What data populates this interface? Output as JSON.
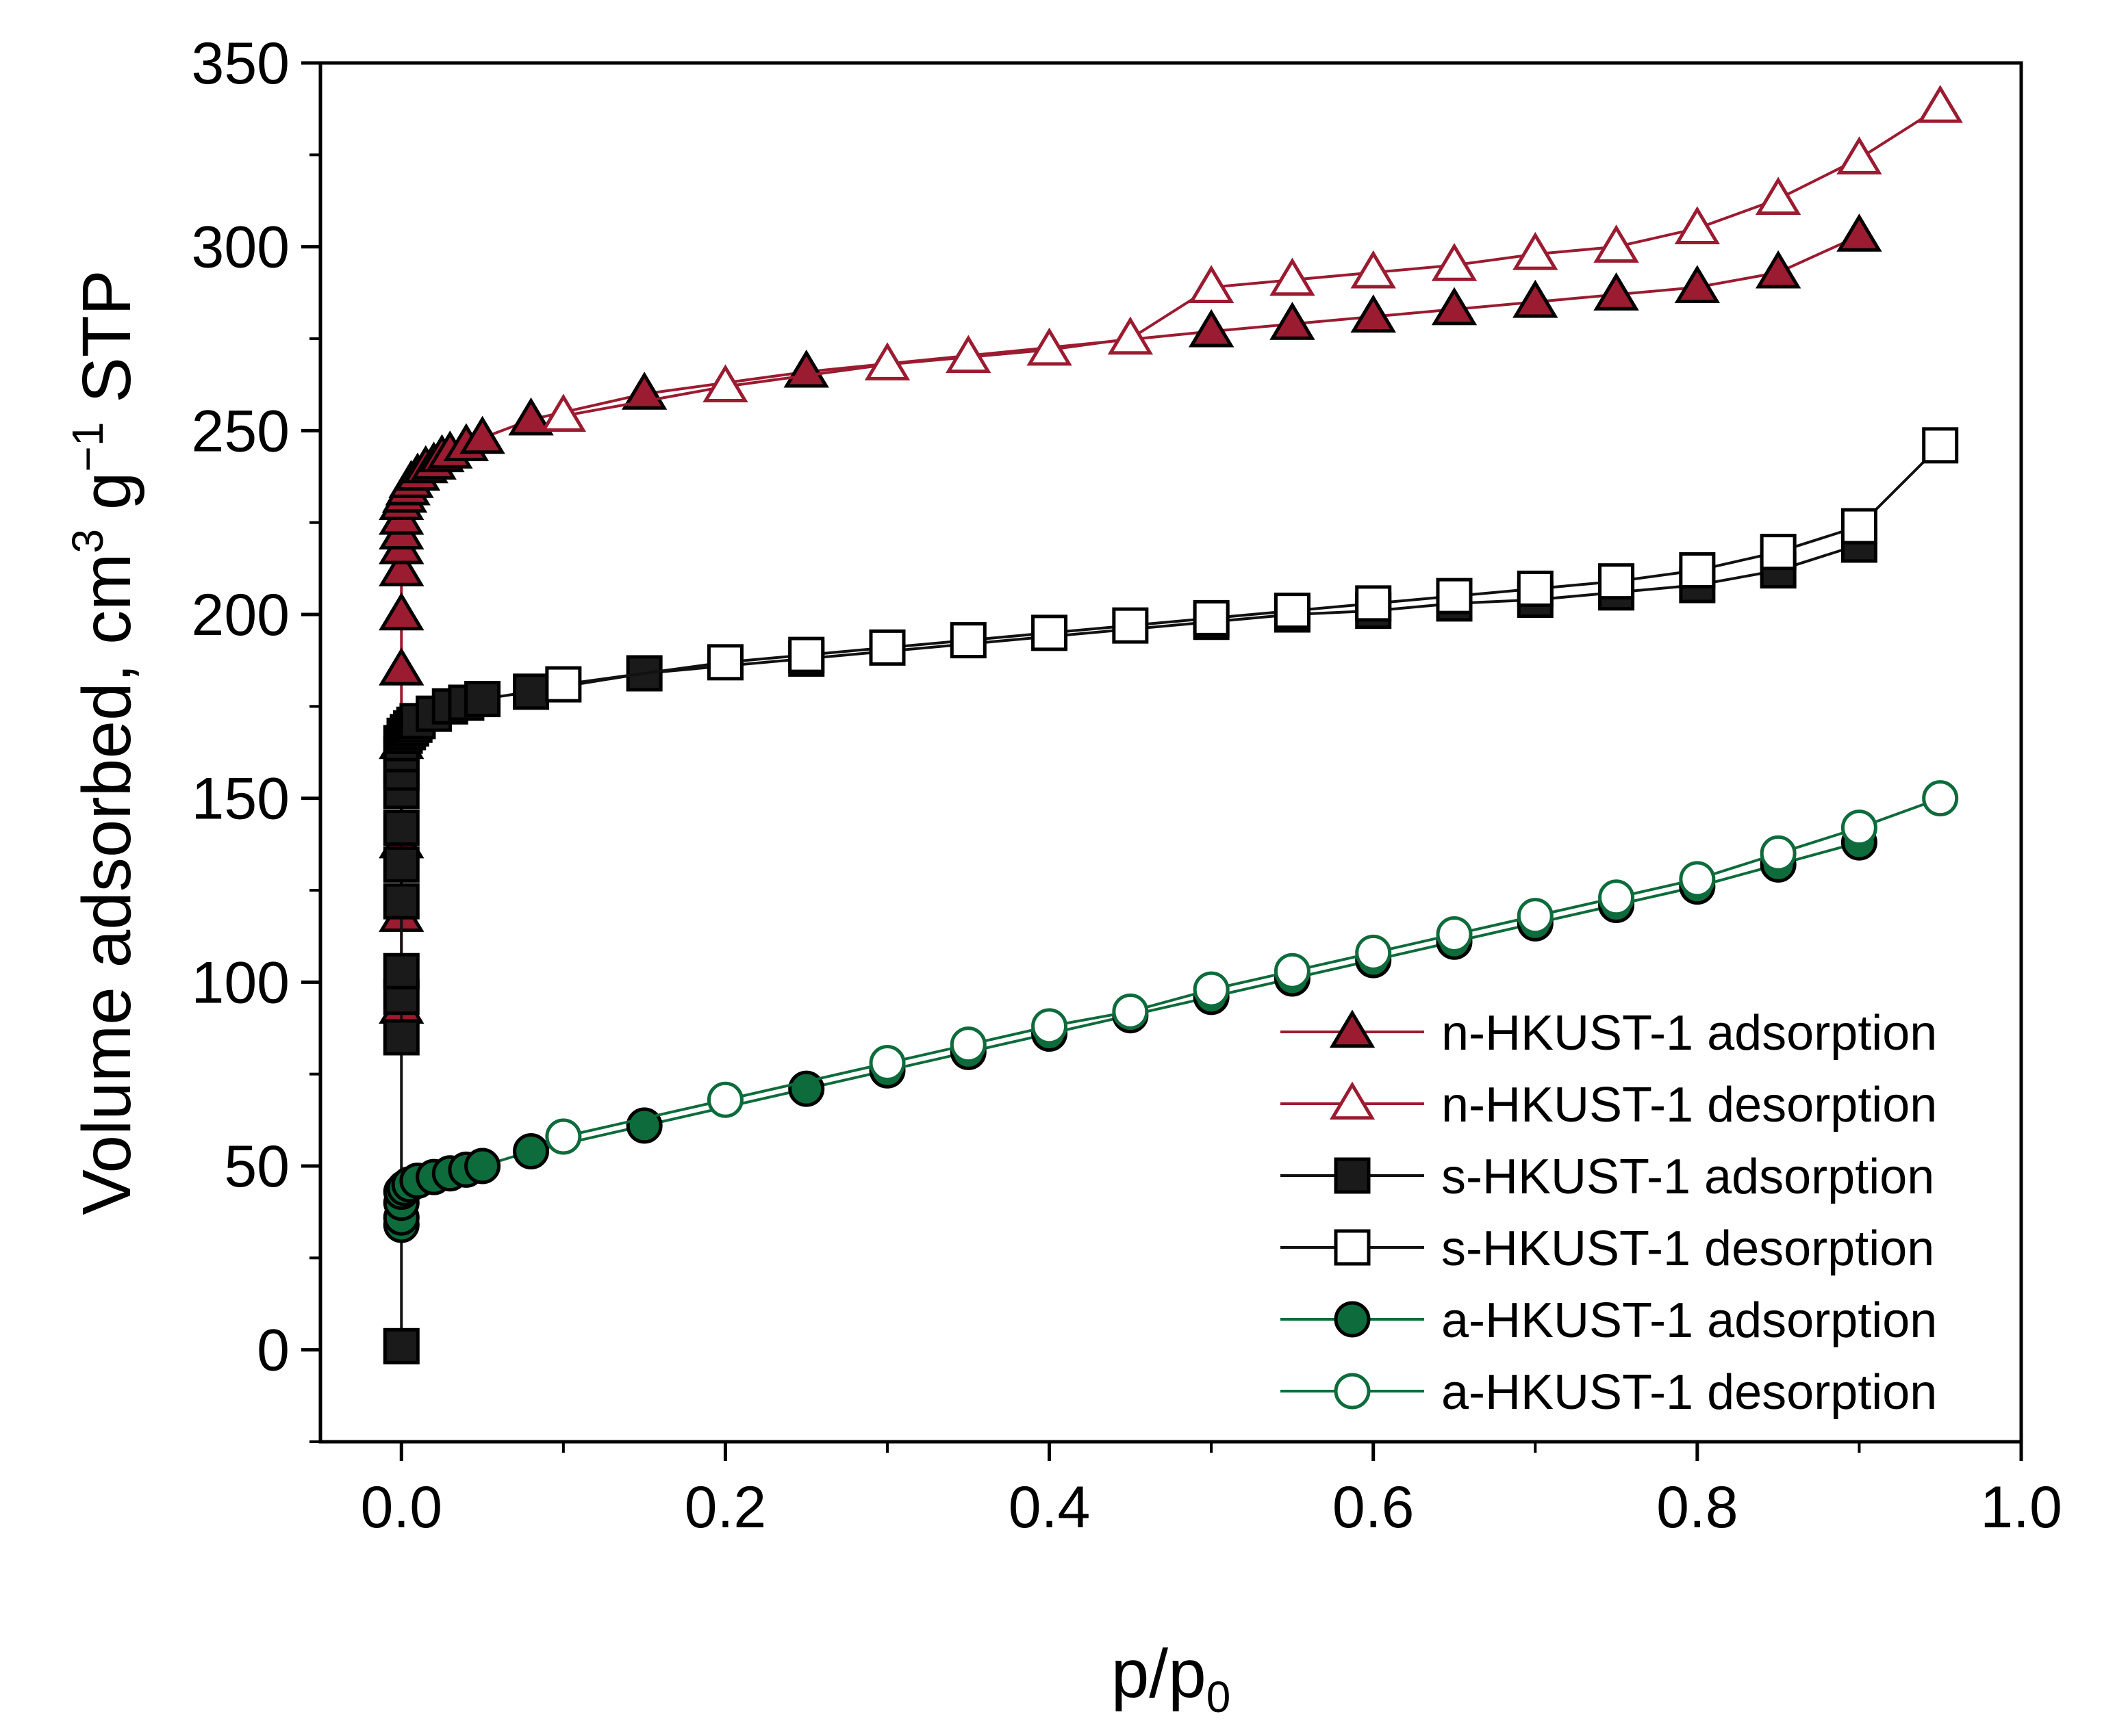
{
  "chart_data": {
    "type": "scatter",
    "xlabel": "p/p",
    "xlabel_sub": "0",
    "ylabel": "Volume adsorbed, cm",
    "ylabel_sup1": "3",
    "ylabel_mid": " g",
    "ylabel_sup2": "−1",
    "ylabel_end": " STP",
    "xlim": [
      -0.05,
      1.0
    ],
    "ylim": [
      -25,
      350
    ],
    "xticks": [
      0.0,
      0.2,
      0.4,
      0.6,
      0.8,
      1.0
    ],
    "xtick_labels": [
      "0.0",
      "0.2",
      "0.4",
      "0.6",
      "0.8",
      "1.0"
    ],
    "yticks": [
      0,
      50,
      100,
      150,
      200,
      250,
      300,
      350
    ],
    "ytick_labels": [
      "0",
      "50",
      "100",
      "150",
      "200",
      "250",
      "300",
      "350"
    ],
    "legend_position": "bottom-right",
    "series": [
      {
        "name": "n-HKUST-1 adsorption",
        "marker": "triangle",
        "filled": true,
        "color": "#9b1b30",
        "fill": "#9b1b30",
        "edge": "#000000",
        "x": [
          0,
          0,
          0,
          0,
          0,
          0,
          0,
          0,
          0,
          0,
          0,
          0.002,
          0.004,
          0.006,
          0.01,
          0.015,
          0.02,
          0.025,
          0.03,
          0.04,
          0.05,
          0.08,
          0.15,
          0.25,
          0.5,
          0.55,
          0.6,
          0.65,
          0.7,
          0.75,
          0.8,
          0.85,
          0.9
        ],
        "y": [
          93,
          118,
          138,
          165,
          185,
          200,
          212,
          218,
          222,
          226,
          230,
          232,
          234,
          236,
          238,
          240,
          241,
          243,
          244,
          246,
          248,
          253,
          260,
          266,
          277,
          279,
          281,
          283,
          285,
          287,
          289,
          293,
          303
        ]
      },
      {
        "name": "n-HKUST-1 desorption",
        "marker": "triangle",
        "filled": false,
        "color": "#9b1b30",
        "fill": "#ffffff",
        "edge": "#9b1b30",
        "x": [
          0.95,
          0.9,
          0.85,
          0.8,
          0.75,
          0.7,
          0.65,
          0.6,
          0.55,
          0.5,
          0.45,
          0.4,
          0.35,
          0.3,
          0.2,
          0.1
        ],
        "y": [
          338,
          324,
          313,
          305,
          300,
          298,
          295,
          293,
          291,
          289,
          275,
          272,
          270,
          268,
          262,
          254
        ]
      },
      {
        "name": "s-HKUST-1 adsorption",
        "marker": "square",
        "filled": true,
        "color": "#111111",
        "fill": "#1a1a1a",
        "edge": "#000000",
        "x": [
          0,
          0,
          0,
          0,
          0,
          0,
          0,
          0,
          0,
          0,
          0,
          0.002,
          0.004,
          0.006,
          0.008,
          0.01,
          0.02,
          0.03,
          0.04,
          0.05,
          0.08,
          0.15,
          0.25,
          0.5,
          0.55,
          0.6,
          0.65,
          0.7,
          0.75,
          0.8,
          0.85,
          0.9
        ],
        "y": [
          1,
          85,
          96,
          103,
          122,
          132,
          142,
          152,
          157,
          162,
          165,
          167,
          168,
          169,
          170,
          171,
          173,
          175,
          176,
          177,
          179,
          184,
          188,
          198,
          200,
          201,
          203,
          204,
          206,
          208,
          212,
          219
        ]
      },
      {
        "name": "s-HKUST-1 desorption",
        "marker": "square",
        "filled": false,
        "color": "#111111",
        "fill": "#ffffff",
        "edge": "#000000",
        "x": [
          0.95,
          0.9,
          0.85,
          0.8,
          0.75,
          0.7,
          0.65,
          0.6,
          0.55,
          0.5,
          0.45,
          0.4,
          0.35,
          0.3,
          0.25,
          0.2,
          0.1
        ],
        "y": [
          246,
          224,
          217,
          212,
          209,
          207,
          205,
          203,
          201,
          199,
          197,
          195,
          193,
          191,
          189,
          187,
          181
        ]
      },
      {
        "name": "a-HKUST-1 adsorption",
        "marker": "circle",
        "filled": true,
        "color": "#0e6b3b",
        "fill": "#0e6b3b",
        "edge": "#000000",
        "x": [
          0,
          0,
          0,
          0,
          0.002,
          0.005,
          0.01,
          0.02,
          0.03,
          0.04,
          0.05,
          0.08,
          0.15,
          0.25,
          0.3,
          0.35,
          0.4,
          0.45,
          0.5,
          0.55,
          0.6,
          0.65,
          0.7,
          0.75,
          0.8,
          0.85,
          0.9
        ],
        "y": [
          34,
          36,
          40,
          43,
          44,
          45,
          46,
          47,
          48,
          49,
          50,
          54,
          61,
          71,
          76,
          81,
          86,
          91,
          96,
          101,
          106,
          111,
          116,
          121,
          126,
          132,
          138
        ]
      },
      {
        "name": "a-HKUST-1 desorption",
        "marker": "circle",
        "filled": false,
        "color": "#0e6b3b",
        "fill": "#ffffff",
        "edge": "#0e6b3b",
        "x": [
          0.95,
          0.9,
          0.85,
          0.8,
          0.75,
          0.7,
          0.65,
          0.6,
          0.55,
          0.5,
          0.45,
          0.4,
          0.35,
          0.3,
          0.2,
          0.1
        ],
        "y": [
          150,
          142,
          135,
          128,
          123,
          118,
          113,
          108,
          103,
          98,
          92,
          88,
          83,
          78,
          68,
          58
        ]
      }
    ]
  }
}
